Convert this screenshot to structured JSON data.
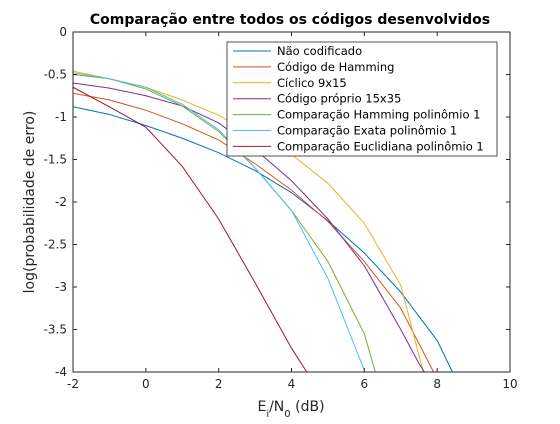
{
  "chart_data": {
    "type": "line",
    "title": "Comparação entre todos os códigos desenvolvidos",
    "xlabel_parts": [
      "E",
      "i",
      "/N",
      "0",
      " (dB)"
    ],
    "ylabel": "log(probabilidade de erro)",
    "xlim": [
      -2,
      10
    ],
    "ylim": [
      -4,
      0
    ],
    "x_ticks": [
      -2,
      0,
      2,
      4,
      6,
      8,
      10
    ],
    "y_ticks": [
      0,
      -0.5,
      -1,
      -1.5,
      -2,
      -2.5,
      -3,
      -3.5,
      -4
    ],
    "grid": false,
    "legend_position": "top-right",
    "series": [
      {
        "name": "Não codificado",
        "color": "#0072BD",
        "points": [
          [
            -2,
            -0.88
          ],
          [
            -1,
            -0.97
          ],
          [
            0,
            -1.1
          ],
          [
            1,
            -1.25
          ],
          [
            2,
            -1.42
          ],
          [
            3,
            -1.63
          ],
          [
            4,
            -1.89
          ],
          [
            5,
            -2.22
          ],
          [
            6,
            -2.6
          ],
          [
            7,
            -3.06
          ],
          [
            8,
            -3.63
          ],
          [
            8.42,
            -4.0
          ]
        ]
      },
      {
        "name": "Código de Hamming",
        "color": "#D95319",
        "points": [
          [
            -2,
            -0.72
          ],
          [
            -1,
            -0.8
          ],
          [
            0,
            -0.92
          ],
          [
            1,
            -1.08
          ],
          [
            2,
            -1.27
          ],
          [
            3,
            -1.55
          ],
          [
            4,
            -1.86
          ],
          [
            5,
            -2.23
          ],
          [
            6,
            -2.7
          ],
          [
            7,
            -3.25
          ],
          [
            7.9,
            -4.0
          ]
        ]
      },
      {
        "name": "Cíclico 9x15",
        "color": "#EDB120",
        "points": [
          [
            -2,
            -0.46
          ],
          [
            -1,
            -0.55
          ],
          [
            0,
            -0.65
          ],
          [
            1,
            -0.8
          ],
          [
            2,
            -0.98
          ],
          [
            3,
            -1.22
          ],
          [
            4,
            -1.44
          ],
          [
            5,
            -1.78
          ],
          [
            6,
            -2.25
          ],
          [
            7,
            -2.98
          ],
          [
            7.62,
            -4.0
          ]
        ]
      },
      {
        "name": "Código próprio 15x35",
        "color": "#7E2F8E",
        "points": [
          [
            -2,
            -0.6
          ],
          [
            -1,
            -0.66
          ],
          [
            0,
            -0.75
          ],
          [
            1,
            -0.87
          ],
          [
            2,
            -1.07
          ],
          [
            3,
            -1.38
          ],
          [
            4,
            -1.75
          ],
          [
            5,
            -2.2
          ],
          [
            6,
            -2.75
          ],
          [
            7,
            -3.5
          ],
          [
            7.5,
            -3.9
          ],
          [
            7.65,
            -4.0
          ]
        ]
      },
      {
        "name": "Comparação Hamming polinômio 1",
        "color": "#77AC30",
        "points": [
          [
            -2,
            -0.5
          ],
          [
            -1,
            -0.55
          ],
          [
            0,
            -0.67
          ],
          [
            1,
            -0.87
          ],
          [
            2,
            -1.17
          ],
          [
            3,
            -1.6
          ],
          [
            4,
            -2.1
          ],
          [
            5,
            -2.7
          ],
          [
            6,
            -3.55
          ],
          [
            6.3,
            -4.0
          ]
        ]
      },
      {
        "name": "Comparação Exata polinômio 1",
        "color": "#4DBEEE",
        "points": [
          [
            -2,
            -0.48
          ],
          [
            -1,
            -0.55
          ],
          [
            0,
            -0.65
          ],
          [
            1,
            -0.85
          ],
          [
            2,
            -1.15
          ],
          [
            3,
            -1.6
          ],
          [
            4,
            -2.1
          ],
          [
            5,
            -2.9
          ],
          [
            6,
            -3.98
          ]
        ]
      },
      {
        "name": "Comparação Euclidiana polinômio 1",
        "color": "#A2142F",
        "points": [
          [
            -2,
            -0.65
          ],
          [
            -1,
            -0.88
          ],
          [
            0,
            -1.12
          ],
          [
            1,
            -1.58
          ],
          [
            2,
            -2.2
          ],
          [
            3,
            -2.95
          ],
          [
            4,
            -3.72
          ],
          [
            4.42,
            -4.0
          ]
        ]
      }
    ]
  }
}
